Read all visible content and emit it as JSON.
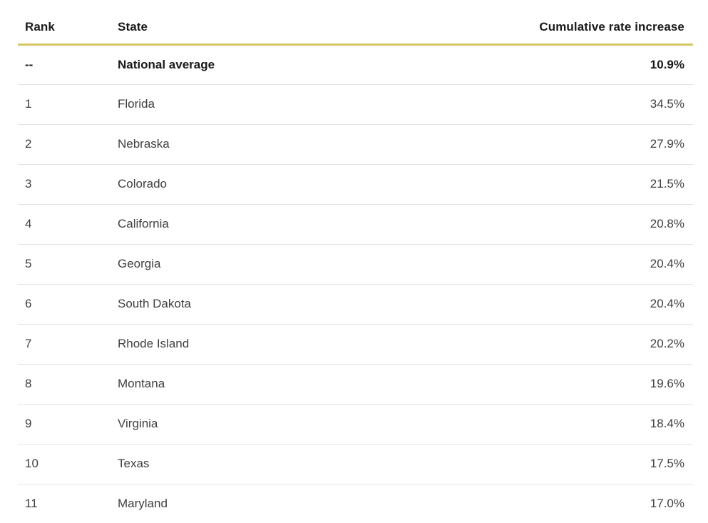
{
  "chart_data": {
    "type": "table",
    "title": "",
    "columns": [
      "Rank",
      "State",
      "Cumulative rate increase"
    ],
    "rows": [
      [
        "--",
        "National average",
        "10.9%"
      ],
      [
        "1",
        "Florida",
        "34.5%"
      ],
      [
        "2",
        "Nebraska",
        "27.9%"
      ],
      [
        "3",
        "Colorado",
        "21.5%"
      ],
      [
        "4",
        "California",
        "20.8%"
      ],
      [
        "5",
        "Georgia",
        "20.4%"
      ],
      [
        "6",
        "South Dakota",
        "20.4%"
      ],
      [
        "7",
        "Rhode Island",
        "20.2%"
      ],
      [
        "8",
        "Montana",
        "19.6%"
      ],
      [
        "9",
        "Virginia",
        "18.4%"
      ],
      [
        "10",
        "Texas",
        "17.5%"
      ],
      [
        "11",
        "Maryland",
        "17.0%"
      ]
    ],
    "bold_rows": [
      0
    ],
    "layout": {
      "header_align": [
        "left",
        "left",
        "right"
      ],
      "value_column_numeric": true,
      "grid": "horizontal-rules-only"
    }
  },
  "colors": {
    "accent_gold_rule": "#d6c65f",
    "row_divider": "#e3e3e3",
    "header_text": "#1a1a1a",
    "body_text": "#3f3f3f",
    "background": "#ffffff"
  }
}
